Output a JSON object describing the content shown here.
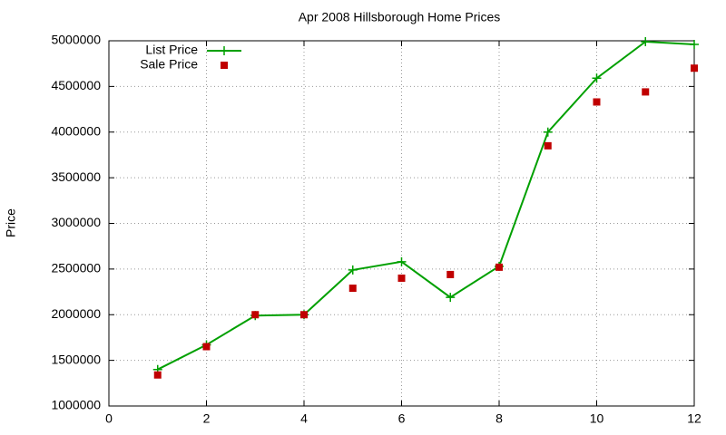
{
  "chart_data": {
    "type": "line",
    "title": "Apr 2008 Hillsborough Home Prices",
    "y_label": "Price",
    "x": [
      1,
      2,
      3,
      4,
      5,
      6,
      7,
      8,
      9,
      10,
      11,
      12
    ],
    "series": [
      {
        "name": "List Price",
        "color": "#00a000",
        "style": "linespoints",
        "values": [
          1400000,
          1670000,
          1990000,
          2000000,
          2490000,
          2580000,
          2190000,
          2530000,
          4000000,
          4590000,
          4990000,
          4960000
        ]
      },
      {
        "name": "Sale Price",
        "color": "#c00000",
        "style": "points",
        "values": [
          1340000,
          1650000,
          2000000,
          2000000,
          2290000,
          2400000,
          2440000,
          2520000,
          3850000,
          4330000,
          4440000,
          4700000
        ]
      }
    ],
    "xlim": [
      0,
      12
    ],
    "xticks": [
      0,
      2,
      4,
      6,
      8,
      10,
      12
    ],
    "ylim": [
      1000000,
      5000000
    ],
    "yticks": [
      1000000,
      1500000,
      2000000,
      2500000,
      3000000,
      3500000,
      4000000,
      4500000,
      5000000
    ],
    "grid": true,
    "legend": "top-left"
  }
}
